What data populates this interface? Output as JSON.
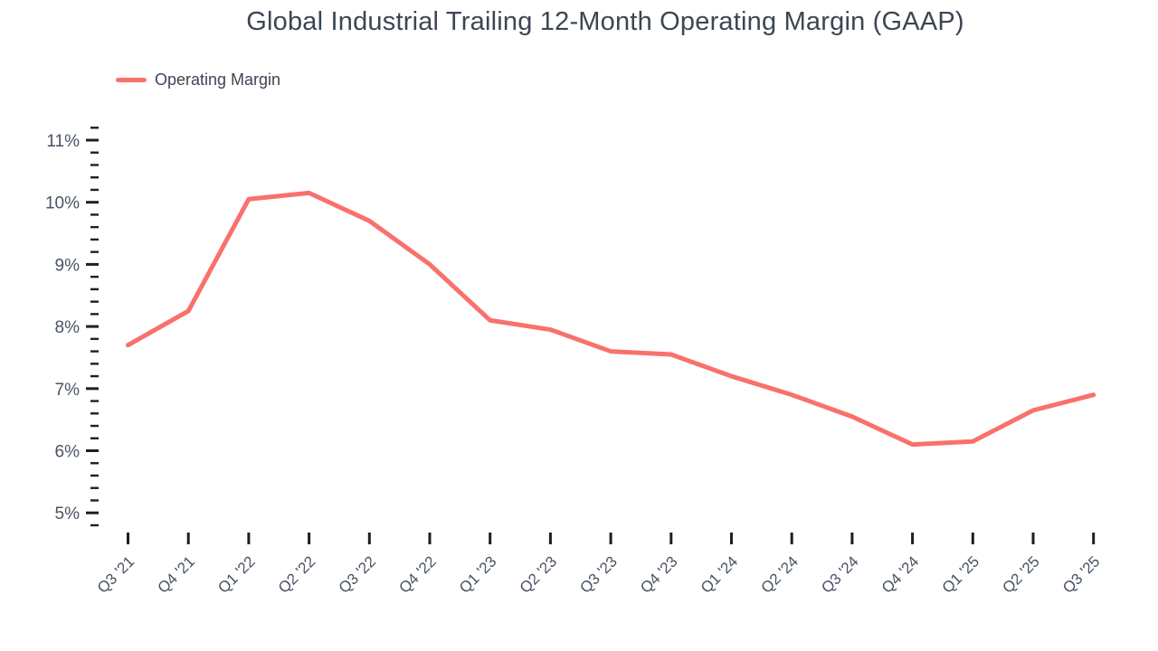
{
  "title": "Global Industrial Trailing 12-Month Operating Margin (GAAP)",
  "legend": {
    "label": "Operating Margin"
  },
  "colors": {
    "line": "#f9716c",
    "title_text": "#3c4653",
    "axis_label_text": "#4a5363",
    "tick_mark": "#1c1f24",
    "background": "#ffffff"
  },
  "chart_data": {
    "type": "line",
    "title": "Global Industrial Trailing 12-Month Operating Margin (GAAP)",
    "xlabel": "",
    "ylabel": "",
    "legend": [
      "Operating Margin"
    ],
    "legend_position": "top-left",
    "grid": false,
    "categories": [
      "Q3 '21",
      "Q4 '21",
      "Q1 '22",
      "Q2 '22",
      "Q3 '22",
      "Q4 '22",
      "Q1 '23",
      "Q2 '23",
      "Q3 '23",
      "Q4 '23",
      "Q1 '24",
      "Q2 '24",
      "Q3 '24",
      "Q4 '24",
      "Q1 '25",
      "Q2 '25",
      "Q3 '25"
    ],
    "series": [
      {
        "name": "Operating Margin",
        "unit": "%",
        "values": [
          7.7,
          8.25,
          10.05,
          10.15,
          9.7,
          9.0,
          8.1,
          7.95,
          7.6,
          7.55,
          7.2,
          6.9,
          6.55,
          6.1,
          6.15,
          6.65,
          6.9
        ]
      }
    ],
    "y_major_tick_labels": [
      "11%",
      "10%",
      "9%",
      "8%",
      "7%",
      "6%",
      "5%"
    ],
    "y_major_tick_values": [
      11,
      10,
      9,
      8,
      7,
      6,
      5
    ],
    "y_minor_step": 0.2,
    "ylim": [
      4.8,
      11.2
    ]
  }
}
